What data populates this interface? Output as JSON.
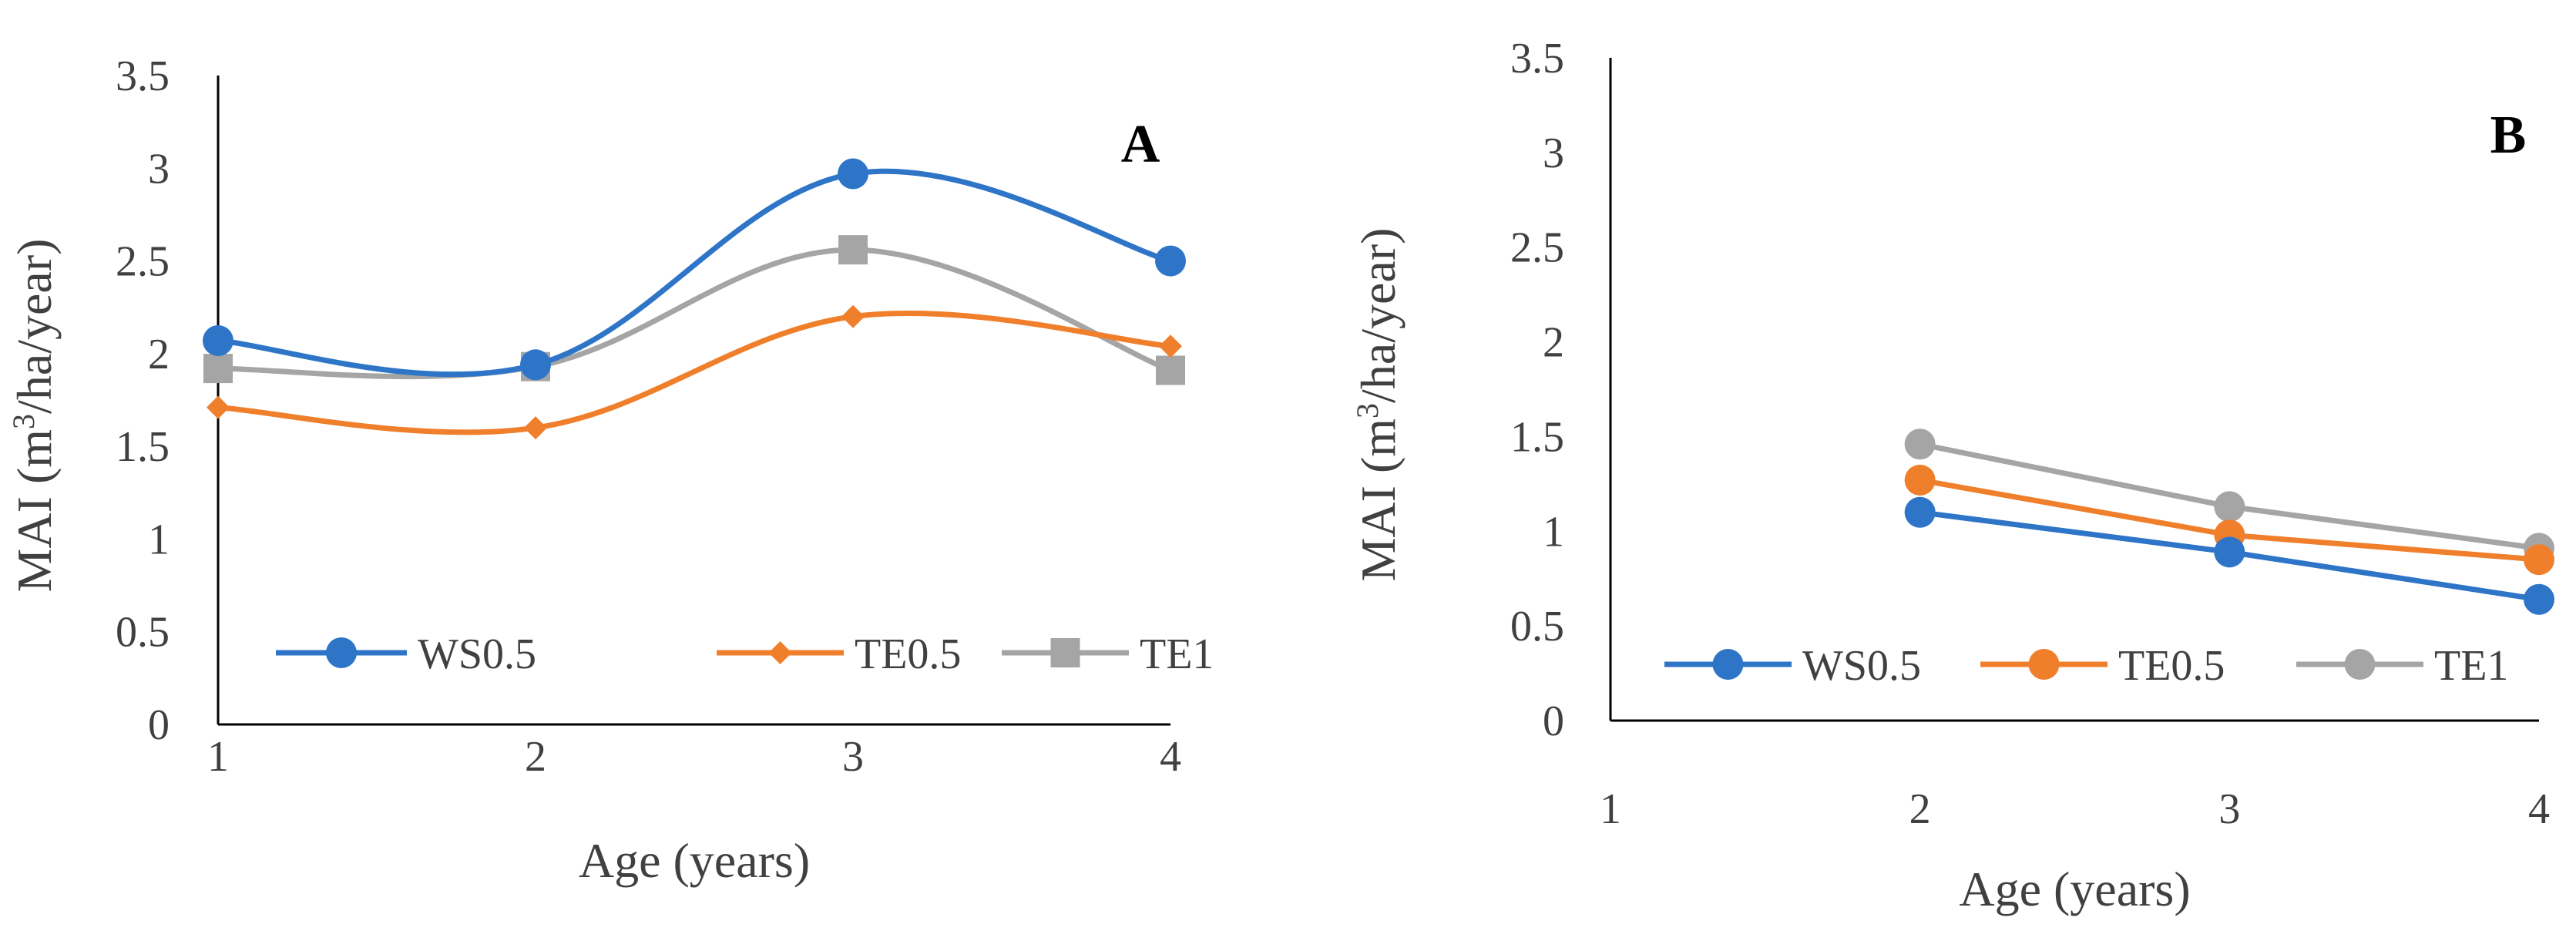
{
  "chart_data": [
    {
      "type": "line",
      "smooth": true,
      "panel_label": "A",
      "title": "",
      "xlabel": "Age (years)",
      "ylabel": "MAI (m3/ha/year)",
      "ylabel_parts": {
        "pre": "MAI (m",
        "sup": "3",
        "post": "/ha/year)"
      },
      "x": [
        1,
        2,
        3,
        4
      ],
      "xlim": [
        1,
        4
      ],
      "ylim": [
        0,
        3.5
      ],
      "xticks": [
        "1",
        "2",
        "3",
        "4"
      ],
      "yticks": [
        "0",
        "0.5",
        "1",
        "1.5",
        "2",
        "2.5",
        "3",
        "3.5"
      ],
      "grid": false,
      "legend": {
        "position": "bottom",
        "entries": [
          "WS0.5",
          "TE0.5",
          "TE1"
        ]
      },
      "series": [
        {
          "name": "WS0.5",
          "marker": "circle",
          "color": "#2E75C8",
          "values": [
            2.07,
            1.94,
            2.97,
            2.5
          ]
        },
        {
          "name": "TE0.5",
          "marker": "diamond",
          "color": "#F07F2C",
          "values": [
            1.71,
            1.6,
            2.2,
            2.04
          ]
        },
        {
          "name": "TE1",
          "marker": "square",
          "color": "#A5A5A5",
          "values": [
            1.92,
            1.93,
            2.56,
            1.91
          ]
        }
      ]
    },
    {
      "type": "line",
      "smooth": false,
      "panel_label": "B",
      "title": "",
      "xlabel": "Age (years)",
      "ylabel": "MAI (m3/ha/year)",
      "ylabel_parts": {
        "pre": "MAI (m",
        "sup": "3",
        "post": "/ha/year)"
      },
      "x": [
        2,
        3,
        4
      ],
      "xlim": [
        1,
        4
      ],
      "ylim": [
        0,
        3.5
      ],
      "xticks": [
        "1",
        "2",
        "3",
        "4"
      ],
      "yticks": [
        "0",
        "0.5",
        "1",
        "1.5",
        "2",
        "2.5",
        "3",
        "3.5"
      ],
      "grid": false,
      "legend": {
        "position": "bottom",
        "entries": [
          "WS0.5",
          "TE0.5",
          "TE1"
        ]
      },
      "series": [
        {
          "name": "WS0.5",
          "marker": "circle",
          "color": "#2E75C8",
          "values": [
            1.1,
            0.89,
            0.64
          ]
        },
        {
          "name": "TE0.5",
          "marker": "circle",
          "color": "#F07F2C",
          "values": [
            1.27,
            0.98,
            0.85
          ]
        },
        {
          "name": "TE1",
          "marker": "circle",
          "color": "#A5A5A5",
          "values": [
            1.46,
            1.13,
            0.91
          ]
        }
      ]
    }
  ]
}
